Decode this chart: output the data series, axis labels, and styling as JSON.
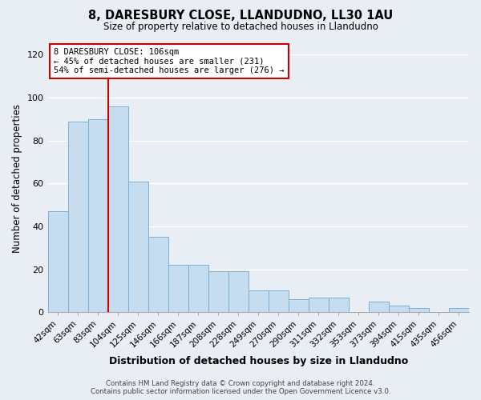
{
  "title": "8, DARESBURY CLOSE, LLANDUDNO, LL30 1AU",
  "subtitle": "Size of property relative to detached houses in Llandudno",
  "xlabel": "Distribution of detached houses by size in Llandudno",
  "ylabel": "Number of detached properties",
  "bar_labels": [
    "42sqm",
    "63sqm",
    "83sqm",
    "104sqm",
    "125sqm",
    "146sqm",
    "166sqm",
    "187sqm",
    "208sqm",
    "228sqm",
    "249sqm",
    "270sqm",
    "290sqm",
    "311sqm",
    "332sqm",
    "353sqm",
    "373sqm",
    "394sqm",
    "415sqm",
    "435sqm",
    "456sqm"
  ],
  "bar_values": [
    47,
    89,
    90,
    96,
    61,
    35,
    22,
    22,
    19,
    19,
    10,
    10,
    6,
    7,
    7,
    0,
    5,
    3,
    2,
    0,
    2
  ],
  "bar_color": "#c5ddef",
  "bar_edge_color": "#7ab0d4",
  "marker_index": 3,
  "marker_color": "#cc0000",
  "ylim": [
    0,
    125
  ],
  "yticks": [
    0,
    20,
    40,
    60,
    80,
    100,
    120
  ],
  "annotation_title": "8 DARESBURY CLOSE: 106sqm",
  "annotation_line1": "← 45% of detached houses are smaller (231)",
  "annotation_line2": "54% of semi-detached houses are larger (276) →",
  "annotation_box_color": "#ffffff",
  "annotation_box_edge": "#cc0000",
  "footer_line1": "Contains HM Land Registry data © Crown copyright and database right 2024.",
  "footer_line2": "Contains public sector information licensed under the Open Government Licence v3.0.",
  "bg_color": "#e8eef4",
  "grid_color": "#ffffff"
}
